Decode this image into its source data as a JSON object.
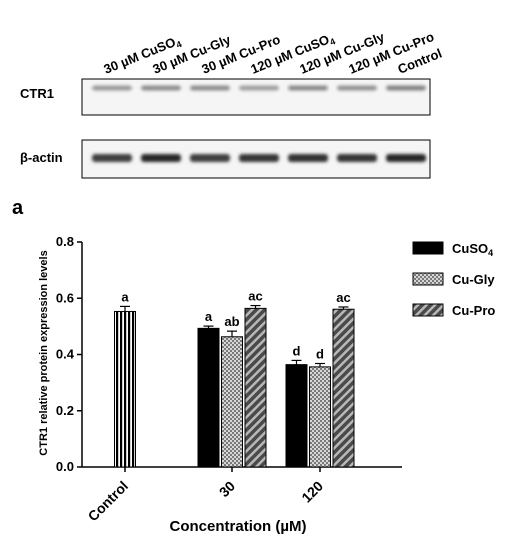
{
  "blot": {
    "lane_labels": [
      "30 µM CuSO4",
      "30 µM Cu-Gly",
      "30 µM Cu-Pro",
      "120 µM CuSO4",
      "120 µM Cu-Gly",
      "120 µM Cu-Pro",
      "Control"
    ],
    "lane_label_prefixes": [
      "30 µM CuSO",
      "30 µM Cu-Gly",
      "30 µM Cu-Pro",
      "120 µM CuSO",
      "120 µM Cu-Gly",
      "120 µM Cu-Pro",
      "Control"
    ],
    "lane_label_subscripts": [
      "4",
      "",
      "",
      "4",
      "",
      "",
      ""
    ],
    "rows": [
      {
        "label": "CTR1",
        "band_strength": [
          0.45,
          0.5,
          0.5,
          0.42,
          0.52,
          0.48,
          0.55
        ]
      },
      {
        "label": "β-actin",
        "band_strength": [
          0.85,
          0.95,
          0.85,
          0.88,
          0.9,
          0.88,
          0.95
        ]
      }
    ]
  },
  "panel_label": "a",
  "chart_data": {
    "type": "bar",
    "ylabel": "CTR1 relative protein expression levels",
    "xlabel": "Concentration (µM)",
    "ylim": [
      0,
      0.8
    ],
    "yticks": [
      "0.0",
      "0.2",
      "0.4",
      "0.6",
      "0.8"
    ],
    "categories": [
      "Control",
      "30",
      "120"
    ],
    "legend_position": "top-right",
    "series": [
      {
        "name": "CuSO4",
        "name_prefix": "CuSO",
        "name_subscript": "4",
        "pattern": "solid",
        "bars": [
          {
            "category": "30",
            "value": 0.493,
            "error": 0.008,
            "label": "a"
          },
          {
            "category": "120",
            "value": 0.364,
            "error": 0.015,
            "label": "d"
          }
        ]
      },
      {
        "name": "Cu-Gly",
        "name_prefix": "Cu-Gly",
        "name_subscript": "",
        "pattern": "checker",
        "bars": [
          {
            "category": "30",
            "value": 0.463,
            "error": 0.02,
            "label": "ab"
          },
          {
            "category": "120",
            "value": 0.356,
            "error": 0.012,
            "label": "d"
          }
        ]
      },
      {
        "name": "Cu-Pro",
        "name_prefix": "Cu-Pro",
        "name_subscript": "",
        "pattern": "hatch",
        "bars": [
          {
            "category": "30",
            "value": 0.564,
            "error": 0.01,
            "label": "ac"
          },
          {
            "category": "120",
            "value": 0.561,
            "error": 0.008,
            "label": "ac"
          }
        ]
      }
    ],
    "control": {
      "name": "Control",
      "pattern": "vertical-stripes",
      "category": "Control",
      "value": 0.553,
      "error": 0.018,
      "label": "a"
    }
  }
}
